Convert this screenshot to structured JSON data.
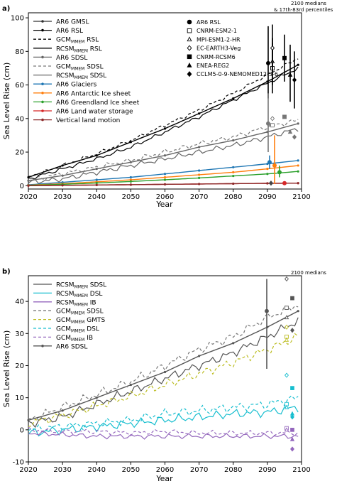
{
  "figure": {
    "panel_a_label": "a)",
    "panel_b_label": "b)",
    "note_a_line1": "2100 medians",
    "note_a_line2": "& 17th-83rd percentiles",
    "note_b": "2100 medians"
  },
  "legend_a": [
    {
      "label": "AR6 GMSL",
      "color": "#333333",
      "style": "solid-marker"
    },
    {
      "label": "AR6 RSL",
      "color": "#000000",
      "style": "solid-marker"
    },
    {
      "label": "GCM MMEM RSL",
      "color": "#000000",
      "style": "dashed"
    },
    {
      "label": "RCSM MMEM RSL",
      "color": "#000000",
      "style": "solid"
    },
    {
      "label": "AR6 SDSL",
      "color": "#666666",
      "style": "solid-marker"
    },
    {
      "label": "GCM MMEM SDSL",
      "color": "#777777",
      "style": "dashed"
    },
    {
      "label": "RCSM MMEM SDSL",
      "color": "#666666",
      "style": "solid"
    },
    {
      "label": "AR6 Glaciers",
      "color": "#1f77b4",
      "style": "solid-marker"
    },
    {
      "label": "AR6  Antarctic Ice sheet",
      "color": "#ff7f0e",
      "style": "solid-marker"
    },
    {
      "label": "AR6  Greendland Ice sheet",
      "color": "#2ca02c",
      "style": "solid-marker"
    },
    {
      "label": "AR6  Land water storage",
      "color": "#d62728",
      "style": "solid-marker"
    },
    {
      "label": "Vertical land motion",
      "color": "#8c2a2a",
      "style": "solid-marker"
    }
  ],
  "models_legend": [
    {
      "marker": "circle-filled",
      "label": "AR6 RSL"
    },
    {
      "marker": "square-open",
      "label": "CNRM-ESM2-1"
    },
    {
      "marker": "triangle-open",
      "label": "MPI-ESM1-2-HR"
    },
    {
      "marker": "diamond-open",
      "label": "EC-EARTH3-Veg"
    },
    {
      "marker": "square-filled",
      "label": "CNRM-RCSM6"
    },
    {
      "marker": "triangle-filled",
      "label": "ENEA-REG2"
    },
    {
      "marker": "diamond-filled",
      "label": "CCLM5-0-9-NEMOMED12-3-6"
    }
  ],
  "legend_b": [
    {
      "label": "RCSM MMEM SDSL",
      "color": "#555555",
      "style": "solid"
    },
    {
      "label": "RCSM MMEM DSL",
      "color": "#17becf",
      "style": "solid"
    },
    {
      "label": "RCSM MMEM IB",
      "color": "#9467bd",
      "style": "solid"
    },
    {
      "label": "GCM MMEM SDSL",
      "color": "#777777",
      "style": "dashed"
    },
    {
      "label": "GCM MMEM GMTS",
      "color": "#bcbd22",
      "style": "dashed"
    },
    {
      "label": "GCM MMEM DSL",
      "color": "#17becf",
      "style": "dashed"
    },
    {
      "label": "GCM MMEM IB",
      "color": "#9467bd",
      "style": "dashed"
    },
    {
      "label": "AR6 SDSL",
      "color": "#555555",
      "style": "solid-marker"
    }
  ],
  "chart_data": [
    {
      "type": "line",
      "panel": "a",
      "xlabel": "Year",
      "ylabel": "Sea Level Rise (cm)",
      "xlim": [
        2020,
        2100
      ],
      "ylim": [
        -2,
        103
      ],
      "x_ticks": [
        2020,
        2030,
        2040,
        2050,
        2060,
        2070,
        2080,
        2090,
        2100
      ],
      "y_ticks": [
        0,
        20,
        40,
        60,
        80,
        100
      ],
      "x": [
        2020,
        2030,
        2040,
        2050,
        2060,
        2070,
        2080,
        2090,
        2099
      ],
      "series": [
        {
          "name": "AR6 RSL",
          "values": [
            5,
            12,
            18,
            26,
            34,
            43,
            52,
            62,
            72
          ]
        },
        {
          "name": "GCM MMEM RSL",
          "values": [
            5,
            12,
            19,
            27,
            36,
            45,
            55,
            66,
            76
          ]
        },
        {
          "name": "RCSM MMEM RSL",
          "values": [
            4,
            10,
            16,
            23,
            32,
            41,
            51,
            61,
            70
          ]
        },
        {
          "name": "AR6 SDSL",
          "values": [
            3,
            6,
            10,
            14,
            18,
            23,
            27,
            32,
            37
          ]
        },
        {
          "name": "GCM MMEM SDSL",
          "values": [
            3,
            7,
            11,
            15,
            20,
            25,
            29,
            35,
            39
          ]
        },
        {
          "name": "RCSM MMEM SDSL",
          "values": [
            2,
            4,
            8,
            12,
            16,
            20,
            24,
            29,
            34
          ]
        },
        {
          "name": "AR6 Glaciers",
          "values": [
            0.5,
            2,
            3.5,
            5,
            7,
            9,
            11,
            13,
            15
          ]
        },
        {
          "name": "AR6  Antarctic Ice sheet",
          "values": [
            0.3,
            1.2,
            2.3,
            3.5,
            5,
            6.5,
            8,
            10,
            12
          ]
        },
        {
          "name": "AR6  Greendland Ice sheet",
          "values": [
            0.2,
            0.8,
            1.6,
            2.5,
            3.5,
            4.6,
            5.8,
            7,
            8.5
          ]
        },
        {
          "name": "AR6  Land water storage",
          "values": [
            0,
            0.2,
            0.4,
            0.6,
            0.8,
            1,
            1.2,
            1.4,
            1.5
          ]
        },
        {
          "name": "Vertical land motion",
          "values": [
            0,
            0.2,
            0.4,
            0.6,
            0.8,
            1,
            1.2,
            1.4,
            1.5
          ]
        }
      ],
      "medians_2100": [
        {
          "series": "AR6 RSL",
          "median": 73,
          "range": [
            52,
            95
          ],
          "color": "#000000",
          "marker": "circle-filled"
        },
        {
          "series": "CNRM-ESM2-1",
          "median": 70,
          "range": [
            55,
            85
          ],
          "color": "#000000",
          "marker": "square-open"
        },
        {
          "series": "MPI-ESM1-2-HR",
          "median": 74,
          "range": [
            60,
            88
          ],
          "color": "#000000",
          "marker": "triangle-open"
        },
        {
          "series": "EC-EARTH3-Veg",
          "median": 82,
          "range": [
            68,
            96
          ],
          "color": "#000000",
          "marker": "diamond-open"
        },
        {
          "series": "CNRM-RCSM6",
          "median": 76,
          "range": [
            62,
            90
          ],
          "color": "#000000",
          "marker": "square-filled"
        },
        {
          "series": "ENEA-REG2",
          "median": 66,
          "range": [
            50,
            84
          ],
          "color": "#000000",
          "marker": "triangle-filled"
        },
        {
          "series": "CCLM5-0-9-NEMOMED12-3-6",
          "median": 63,
          "range": [
            46,
            80
          ],
          "color": "#000000",
          "marker": "diamond-filled"
        },
        {
          "series": "AR6 SDSL",
          "median": 37,
          "range": [
            20,
            55
          ],
          "color": "#777777",
          "marker": "circle-filled"
        },
        {
          "series": "SDSL CNRM-ESM2-1",
          "median": 36,
          "range": [
            null,
            null
          ],
          "color": "#777777",
          "marker": "square-open"
        },
        {
          "series": "SDSL EC-EARTH3-Veg",
          "median": 40,
          "range": [
            null,
            null
          ],
          "color": "#777777",
          "marker": "diamond-open"
        },
        {
          "series": "SDSL CNRM-RCSM6",
          "median": 41,
          "range": [
            null,
            null
          ],
          "color": "#777777",
          "marker": "square-filled"
        },
        {
          "series": "SDSL ENEA-REG2",
          "median": 32,
          "range": [
            null,
            null
          ],
          "color": "#777777",
          "marker": "triangle-filled"
        },
        {
          "series": "SDSL CCLM5-0-9-NEMOMED12-3-6",
          "median": 29,
          "range": [
            null,
            null
          ],
          "color": "#777777",
          "marker": "diamond-filled"
        },
        {
          "series": "AR6 Glaciers",
          "median": 14,
          "range": [
            10,
            18
          ],
          "color": "#1f77b4",
          "marker": "circle-filled"
        },
        {
          "series": "AR6  Antarctic Ice sheet",
          "median": 12,
          "range": [
            1,
            30
          ],
          "color": "#ff7f0e",
          "marker": "circle-filled"
        },
        {
          "series": "AR6  Greendland Ice sheet",
          "median": 8,
          "range": [
            5,
            12
          ],
          "color": "#2ca02c",
          "marker": "circle-filled"
        },
        {
          "series": "AR6  Land water storage",
          "median": 1.5,
          "range": [
            0.5,
            2.5
          ],
          "color": "#d62728",
          "marker": "circle-filled"
        },
        {
          "series": "Vertical land motion",
          "median": 1.5,
          "range": [
            1,
            2
          ],
          "color": "#444444",
          "marker": "diamond-filled"
        }
      ]
    },
    {
      "type": "line",
      "panel": "b",
      "xlabel": "Year",
      "ylabel": "Sea Level Rise (cm)",
      "xlim": [
        2020,
        2100
      ],
      "ylim": [
        -10,
        48
      ],
      "x_ticks": [
        2020,
        2030,
        2040,
        2050,
        2060,
        2070,
        2080,
        2090,
        2100
      ],
      "y_ticks": [
        -10,
        0,
        10,
        20,
        30,
        40
      ],
      "x": [
        2020,
        2030,
        2040,
        2050,
        2060,
        2070,
        2080,
        2090,
        2099
      ],
      "series": [
        {
          "name": "AR6 SDSL",
          "values": [
            3,
            6,
            10,
            14,
            18,
            23,
            27,
            32,
            37
          ]
        },
        {
          "name": "GCM MMEM SDSL",
          "values": [
            3,
            7,
            11,
            15,
            20,
            25,
            29,
            35,
            39
          ]
        },
        {
          "name": "RCSM MMEM SDSL",
          "values": [
            2,
            4,
            8,
            12,
            16,
            20,
            24,
            29,
            34
          ]
        },
        {
          "name": "GCM MMEM GMTS",
          "values": [
            2,
            4.5,
            7.5,
            10.5,
            14,
            17.5,
            21,
            25,
            29
          ]
        },
        {
          "name": "GCM MMEM DSL",
          "values": [
            0,
            1,
            2,
            3,
            5,
            6,
            7,
            8,
            10
          ]
        },
        {
          "name": "RCSM MMEM DSL",
          "values": [
            -1,
            0,
            1,
            2,
            3,
            4,
            5,
            5.5,
            7
          ]
        },
        {
          "name": "GCM MMEM IB",
          "values": [
            0,
            -0.5,
            -0.5,
            -1,
            -0.5,
            -1,
            -1,
            -1,
            -1
          ]
        },
        {
          "name": "RCSM MMEM IB",
          "values": [
            -1,
            -1.5,
            -2,
            -2,
            -2,
            -2,
            -2,
            -2,
            -2
          ]
        }
      ],
      "medians_2100": [
        {
          "series": "RCSM MMEM SDSL",
          "median": 37,
          "range": [
            19,
            47
          ],
          "color": "#555555",
          "marker": "circle-filled"
        },
        {
          "series": "SDSL EC-EARTH3-Veg",
          "median": 47,
          "color": "#555555",
          "marker": "diamond-open"
        },
        {
          "series": "SDSL CNRM-RCSM6",
          "median": 41,
          "color": "#555555",
          "marker": "square-filled"
        },
        {
          "series": "SDSL CNRM-ESM2-1",
          "median": 38,
          "color": "#555555",
          "marker": "square-open"
        },
        {
          "series": "SDSL MPI-ESM1-2-HR",
          "median": 35,
          "color": "#555555",
          "marker": "triangle-open"
        },
        {
          "series": "SDSL CCLM5-0-9-NEMOMED12-3-6",
          "median": 31,
          "color": "#555555",
          "marker": "diamond-filled"
        },
        {
          "series": "GMTS EC-EARTH3-Veg",
          "median": 32,
          "color": "#bcbd22",
          "marker": "diamond-open"
        },
        {
          "series": "GMTS CNRM-ESM2-1",
          "median": 29,
          "color": "#bcbd22",
          "marker": "square-open"
        },
        {
          "series": "GMTS MPI-ESM1-2-HR",
          "median": 28,
          "color": "#bcbd22",
          "marker": "triangle-open"
        },
        {
          "series": "DSL EC-EARTH3-Veg",
          "median": 17,
          "color": "#17becf",
          "marker": "diamond-open"
        },
        {
          "series": "DSL CNRM-RCSM6",
          "median": 13,
          "color": "#17becf",
          "marker": "square-filled"
        },
        {
          "series": "DSL CNRM-ESM2-1",
          "median": 8,
          "color": "#17becf",
          "marker": "square-open"
        },
        {
          "series": "DSL MPI-ESM1-2-HR",
          "median": 7,
          "color": "#17becf",
          "marker": "triangle-open"
        },
        {
          "series": "DSL ENEA-REG2",
          "median": 5,
          "color": "#17becf",
          "marker": "triangle-filled"
        },
        {
          "series": "DSL CCLM5-0-9-NEMOMED12-3-6",
          "median": 4,
          "color": "#17becf",
          "marker": "diamond-filled"
        },
        {
          "series": "IB CNRM-ESM2-1",
          "median": 0.5,
          "color": "#9467bd",
          "marker": "square-open"
        },
        {
          "series": "IB MPI-ESM1-2-HR",
          "median": 0,
          "color": "#9467bd",
          "marker": "triangle-open"
        },
        {
          "series": "IB CNRM-RCSM6",
          "median": 0,
          "color": "#9467bd",
          "marker": "square-filled"
        },
        {
          "series": "IB ENEA-REG2",
          "median": -3,
          "color": "#9467bd",
          "marker": "triangle-filled"
        },
        {
          "series": "IB CCLM5-0-9-NEMOMED12-3-6",
          "median": -6,
          "color": "#9467bd",
          "marker": "diamond-filled"
        }
      ]
    }
  ]
}
